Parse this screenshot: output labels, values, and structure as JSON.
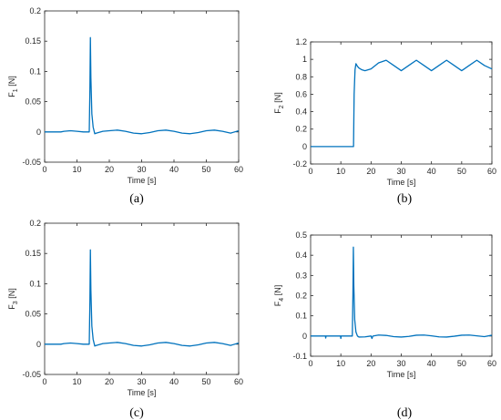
{
  "line_color": "#0072BD",
  "chart_data": [
    {
      "type": "line",
      "panel": "(a)",
      "xlabel": "Time [s]",
      "ylabel_main": "F",
      "ylabel_sub": "1",
      "ylabel_unit": " [N]",
      "xlim": [
        0,
        60
      ],
      "ylim": [
        -0.05,
        0.2
      ],
      "xticks": [
        0,
        10,
        20,
        30,
        40,
        50,
        60
      ],
      "yticks": [
        -0.05,
        0,
        0.05,
        0.1,
        0.15,
        0.2
      ],
      "yticklabels": [
        "-0.05",
        "0",
        "0.05",
        "0.1",
        "0.15",
        "0.2"
      ],
      "series": [
        {
          "x": [
            0,
            5,
            6,
            8,
            10,
            12,
            13.8,
            14.0,
            14.15,
            14.3,
            14.6,
            15.0,
            15.5,
            16,
            18,
            20,
            22.5,
            25,
            27.5,
            30,
            32.5,
            35,
            37.5,
            40,
            42.5,
            45,
            47.5,
            50,
            52.5,
            55,
            57.5,
            60
          ],
          "y": [
            0,
            0,
            0.001,
            0.002,
            0.001,
            0,
            0,
            0.07,
            0.156,
            0.09,
            0.03,
            0.008,
            -0.003,
            -0.002,
            0.001,
            0.002,
            0.003,
            0.001,
            -0.002,
            -0.003,
            -0.001,
            0.002,
            0.003,
            0.001,
            -0.002,
            -0.003,
            -0.001,
            0.002,
            0.003,
            0.001,
            -0.002,
            0.002
          ]
        }
      ]
    },
    {
      "type": "line",
      "panel": "(b)",
      "xlabel": "Time [s]",
      "ylabel_main": "F",
      "ylabel_sub": "2",
      "ylabel_unit": " [N]",
      "xlim": [
        0,
        60
      ],
      "ylim": [
        -0.2,
        1.2
      ],
      "xticks": [
        0,
        10,
        20,
        30,
        40,
        50,
        60
      ],
      "yticks": [
        -0.2,
        0,
        0.2,
        0.4,
        0.6,
        0.8,
        1,
        1.2
      ],
      "yticklabels": [
        "-0.2",
        "0",
        "0.2",
        "0.4",
        "0.6",
        "0.8",
        "1",
        "1.2"
      ],
      "series": [
        {
          "x": [
            0,
            5,
            10,
            12,
            14.2,
            14.4,
            14.7,
            15.0,
            15.5,
            16,
            17,
            18,
            20,
            22.5,
            25,
            27.5,
            30,
            32.5,
            35,
            37.5,
            40,
            42.5,
            45,
            47.5,
            50,
            52.5,
            55,
            57.5,
            60
          ],
          "y": [
            0,
            0,
            0,
            0,
            0,
            0.6,
            0.88,
            0.95,
            0.92,
            0.9,
            0.88,
            0.87,
            0.89,
            0.96,
            0.99,
            0.93,
            0.87,
            0.93,
            0.99,
            0.93,
            0.87,
            0.93,
            0.99,
            0.93,
            0.87,
            0.93,
            0.99,
            0.93,
            0.89
          ]
        }
      ]
    },
    {
      "type": "line",
      "panel": "(c)",
      "xlabel": "Time [s]",
      "ylabel_main": "F",
      "ylabel_sub": "3",
      "ylabel_unit": " [N]",
      "xlim": [
        0,
        60
      ],
      "ylim": [
        -0.05,
        0.2
      ],
      "xticks": [
        0,
        10,
        20,
        30,
        40,
        50,
        60
      ],
      "yticks": [
        -0.05,
        0,
        0.05,
        0.1,
        0.15,
        0.2
      ],
      "yticklabels": [
        "-0.05",
        "0",
        "0.05",
        "0.1",
        "0.15",
        "0.2"
      ],
      "series": [
        {
          "x": [
            0,
            5,
            6,
            8,
            10,
            12,
            13.8,
            14.0,
            14.15,
            14.3,
            14.6,
            15.0,
            15.5,
            16,
            18,
            20,
            22.5,
            25,
            27.5,
            30,
            32.5,
            35,
            37.5,
            40,
            42.5,
            45,
            47.5,
            50,
            52.5,
            55,
            57.5,
            60
          ],
          "y": [
            0,
            0,
            0.001,
            0.002,
            0.001,
            0,
            0,
            0.07,
            0.156,
            0.09,
            0.03,
            0.008,
            -0.003,
            -0.002,
            0.001,
            0.002,
            0.003,
            0.001,
            -0.002,
            -0.003,
            -0.001,
            0.002,
            0.003,
            0.001,
            -0.002,
            -0.003,
            -0.001,
            0.002,
            0.003,
            0.001,
            -0.002,
            0.002
          ]
        }
      ]
    },
    {
      "type": "line",
      "panel": "(d)",
      "xlabel": "Time [s]",
      "ylabel_main": "F",
      "ylabel_sub": "4",
      "ylabel_unit": " [N]",
      "xlim": [
        0,
        60
      ],
      "ylim": [
        -0.1,
        0.5
      ],
      "xticks": [
        0,
        10,
        20,
        30,
        40,
        50,
        60
      ],
      "yticks": [
        -0.1,
        0,
        0.1,
        0.2,
        0.3,
        0.4,
        0.5
      ],
      "yticklabels": [
        "-0.1",
        "0",
        "0.1",
        "0.2",
        "0.3",
        "0.4",
        "0.5"
      ],
      "series": [
        {
          "x": [
            0,
            4.9,
            5.0,
            5.1,
            6,
            9.9,
            10.0,
            10.1,
            12,
            13.8,
            14.0,
            14.15,
            14.3,
            14.6,
            15.0,
            15.5,
            16,
            18,
            20,
            20.3,
            20.6,
            22.5,
            25,
            27.5,
            30,
            32.5,
            35,
            37.5,
            40,
            42.5,
            45,
            47.5,
            50,
            52.5,
            55,
            57.5,
            60
          ],
          "y": [
            0,
            0,
            -0.01,
            0,
            0,
            0,
            -0.012,
            0,
            0,
            0,
            0.2,
            0.44,
            0.25,
            0.08,
            0.02,
            0,
            -0.005,
            -0.004,
            0,
            -0.012,
            0,
            0.005,
            0.003,
            -0.003,
            -0.005,
            -0.002,
            0.004,
            0.005,
            0.001,
            -0.004,
            -0.005,
            -0.001,
            0.004,
            0.005,
            0.001,
            -0.003,
            0.004
          ]
        }
      ]
    }
  ]
}
